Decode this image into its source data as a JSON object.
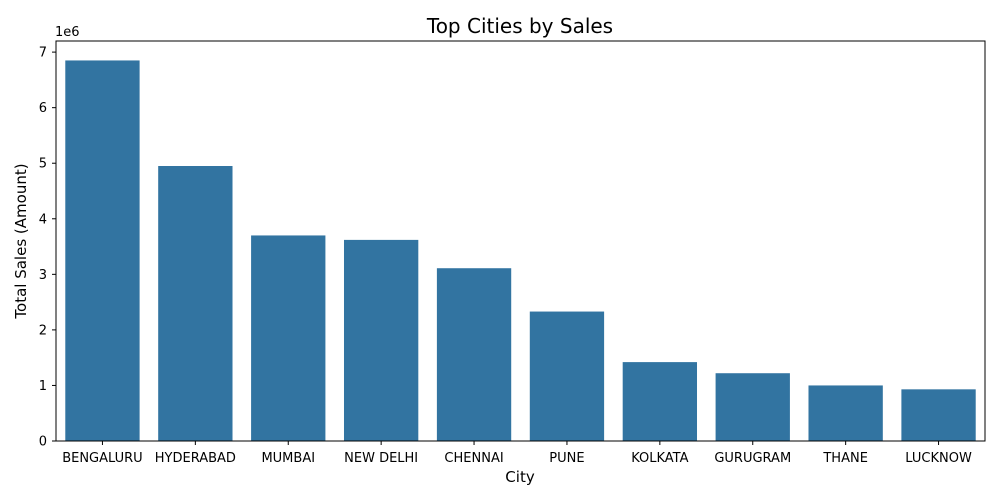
{
  "chart_data": {
    "type": "bar",
    "title": "Top Cities by Sales",
    "xlabel": "City",
    "ylabel": "Total Sales (Amount)",
    "y_offset_label": "1e6",
    "categories": [
      "BENGALURU",
      "HYDERABAD",
      "MUMBAI",
      "NEW DELHI",
      "CHENNAI",
      "PUNE",
      "KOLKATA",
      "GURUGRAM",
      "THANE",
      "LUCKNOW"
    ],
    "values": [
      6850000,
      4950000,
      3700000,
      3620000,
      3110000,
      2330000,
      1420000,
      1220000,
      1000000,
      930000
    ],
    "ylim": [
      0,
      7200000
    ],
    "yticks": [
      0,
      1000000,
      2000000,
      3000000,
      4000000,
      5000000,
      6000000,
      7000000
    ],
    "ytick_labels": [
      "0",
      "1",
      "2",
      "3",
      "4",
      "5",
      "6",
      "7"
    ],
    "bar_color": "#3274a1",
    "grid": false
  }
}
